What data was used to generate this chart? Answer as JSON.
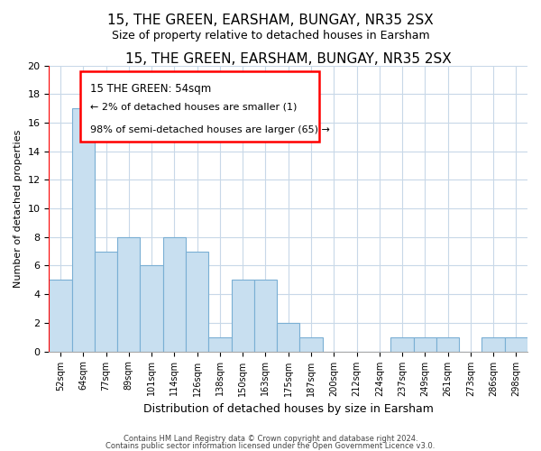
{
  "title": "15, THE GREEN, EARSHAM, BUNGAY, NR35 2SX",
  "subtitle": "Size of property relative to detached houses in Earsham",
  "xlabel": "Distribution of detached houses by size in Earsham",
  "ylabel": "Number of detached properties",
  "bar_color": "#c8dff0",
  "bar_edge_color": "#7aafd4",
  "categories": [
    "52sqm",
    "64sqm",
    "77sqm",
    "89sqm",
    "101sqm",
    "114sqm",
    "126sqm",
    "138sqm",
    "150sqm",
    "163sqm",
    "175sqm",
    "187sqm",
    "200sqm",
    "212sqm",
    "224sqm",
    "237sqm",
    "249sqm",
    "261sqm",
    "273sqm",
    "286sqm",
    "298sqm"
  ],
  "values": [
    5,
    17,
    7,
    8,
    6,
    8,
    7,
    1,
    5,
    5,
    2,
    1,
    0,
    0,
    0,
    1,
    1,
    1,
    0,
    1,
    1
  ],
  "ylim": [
    0,
    20
  ],
  "yticks": [
    0,
    2,
    4,
    6,
    8,
    10,
    12,
    14,
    16,
    18,
    20
  ],
  "annotation_text_line1": "15 THE GREEN: 54sqm",
  "annotation_text_line2": "← 2% of detached houses are smaller (1)",
  "annotation_text_line3": "98% of semi-detached houses are larger (65) →",
  "footer_line1": "Contains HM Land Registry data © Crown copyright and database right 2024.",
  "footer_line2": "Contains public sector information licensed under the Open Government Licence v3.0.",
  "background_color": "#ffffff",
  "grid_color": "#c8d8e8",
  "property_line_x": 0,
  "title_fontsize": 11,
  "subtitle_fontsize": 9
}
